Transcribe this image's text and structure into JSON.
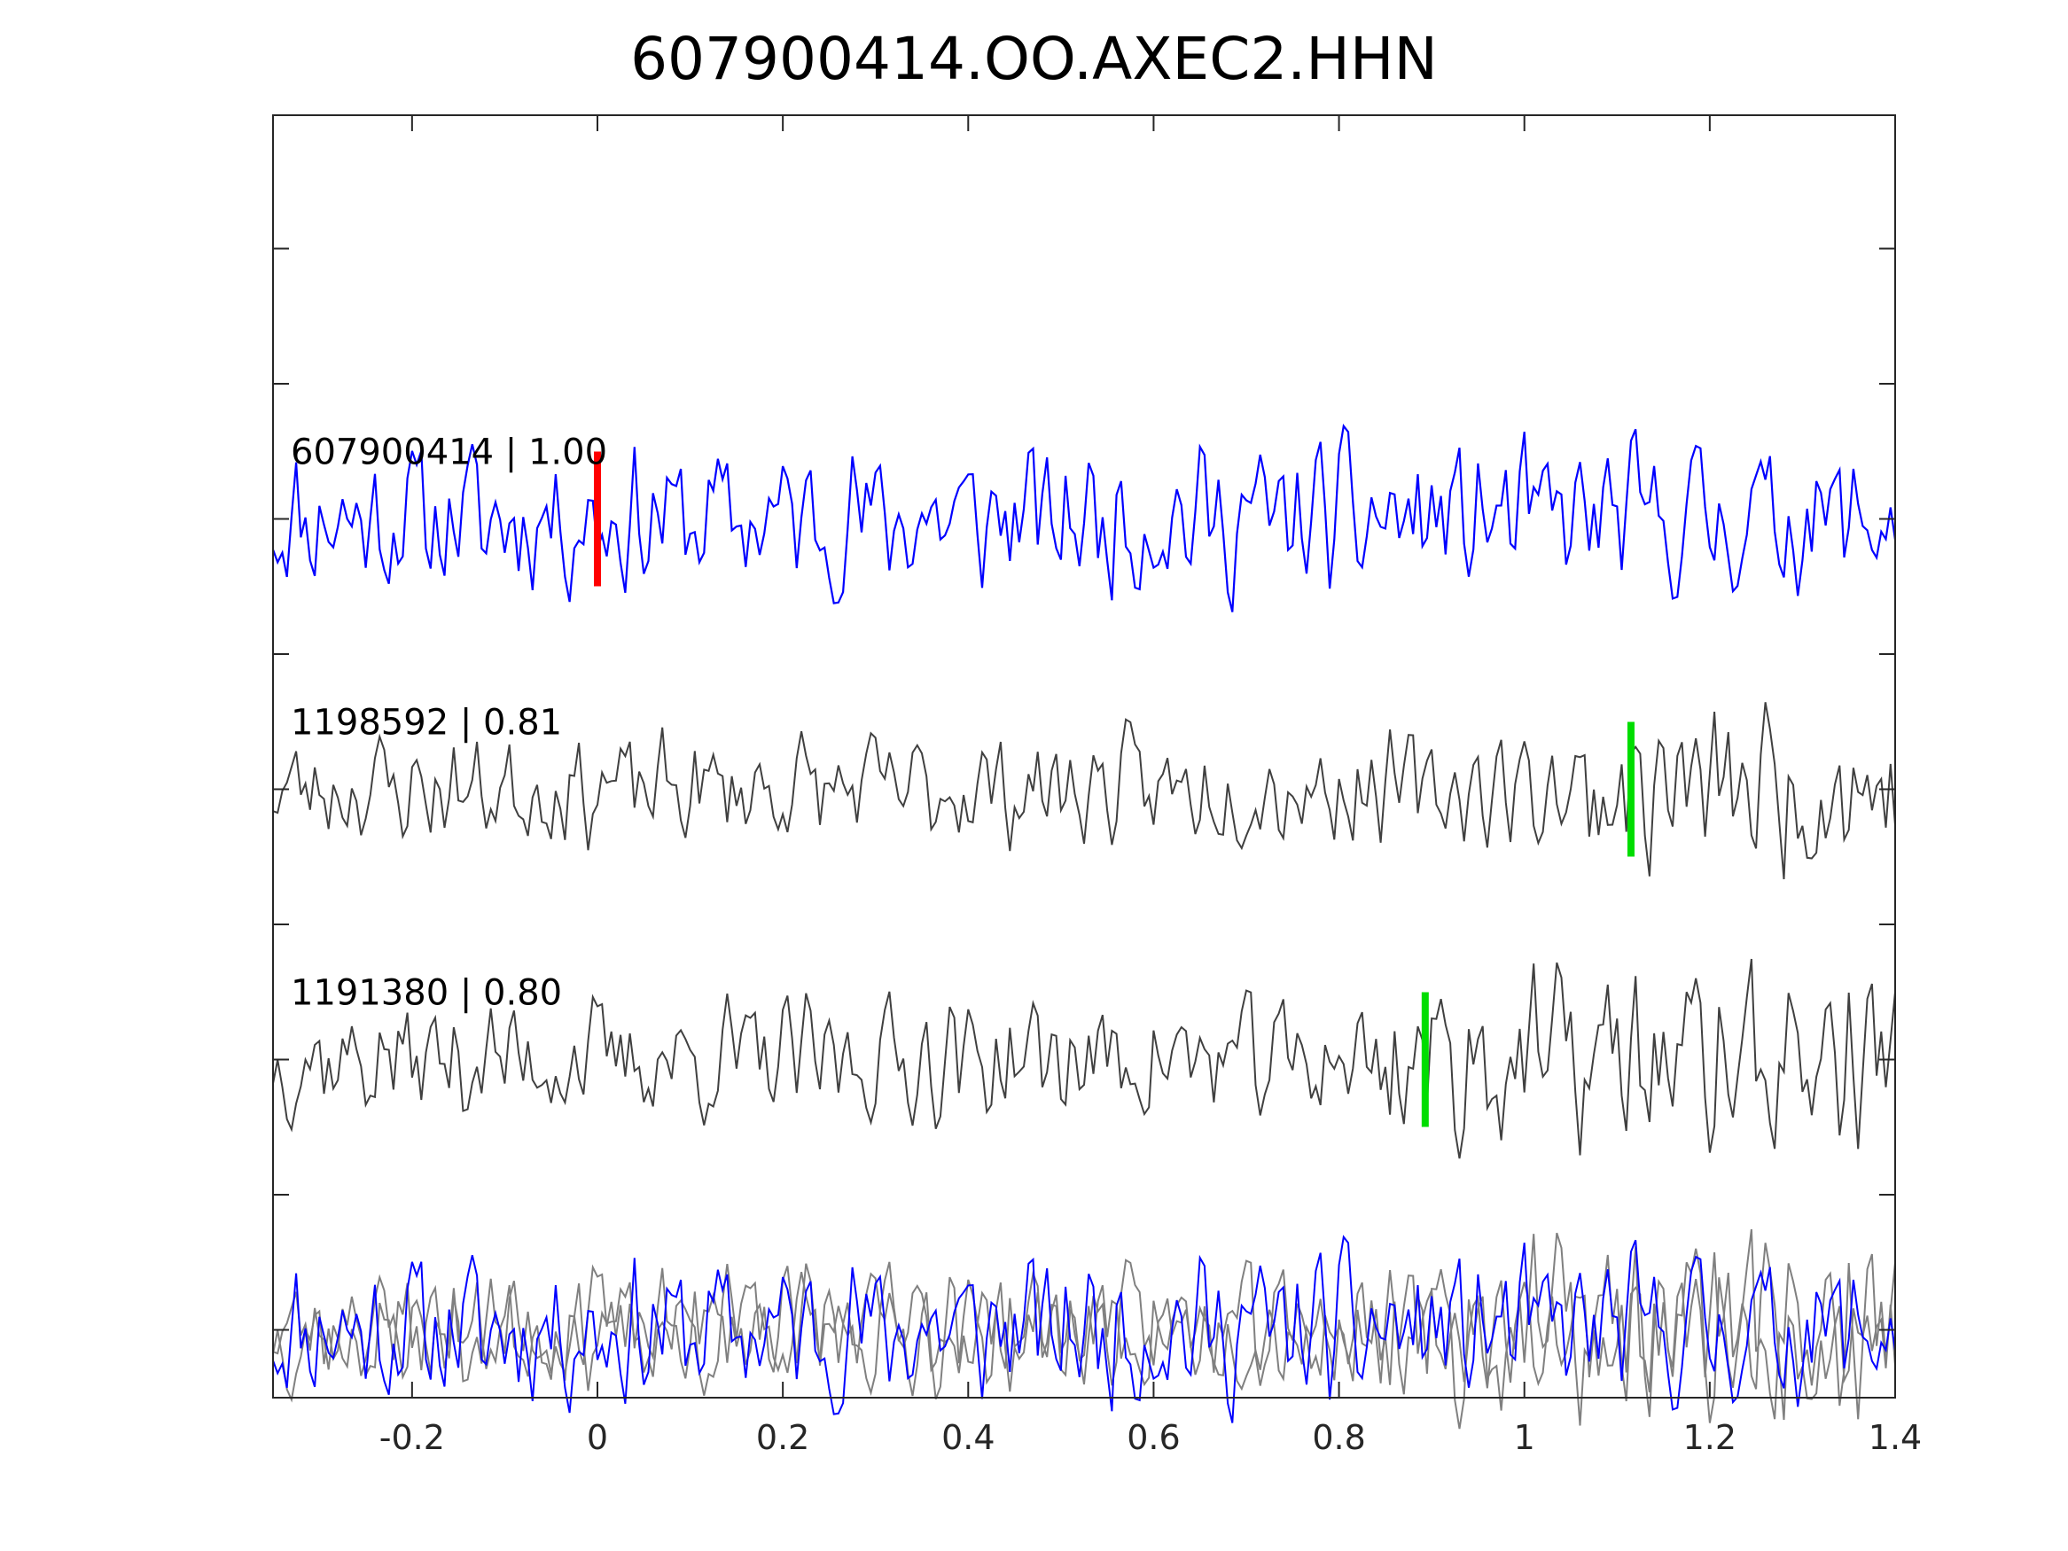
{
  "chart_data": {
    "type": "line",
    "title": "607900414.OO.AXEC2.HHN",
    "xlabel": "",
    "ylabel": "",
    "xlim": [
      -0.35,
      1.4
    ],
    "xticks": [
      -0.2,
      0,
      0.2,
      0.4,
      0.6,
      0.8,
      1,
      1.2,
      1.4
    ],
    "xtick_labels": [
      "-0.2",
      "0",
      "0.2",
      "0.4",
      "0.6",
      "0.8",
      "1",
      "1.2",
      "1.4"
    ],
    "y_ticks_count": 9,
    "y_tick_labels_visible": false,
    "grid": false,
    "legend": "none",
    "sample_interval": 0.005,
    "traces": [
      {
        "label": "607900414 | 1.00",
        "color": "#0000ff",
        "row": 1,
        "pick_time": 0.0,
        "pick_color": "#ff0000",
        "seed": 11
      },
      {
        "label": "1198592 | 0.81",
        "color": "#404040",
        "row": 2,
        "pick_time": 1.115,
        "pick_color": "#00dd00",
        "seed": 23
      },
      {
        "label": "1191380 | 0.80",
        "color": "#404040",
        "row": 3,
        "pick_time": 0.893,
        "pick_color": "#00dd00",
        "seed": 37
      }
    ],
    "overlay": {
      "row": 4,
      "colors": [
        "#0000ff",
        "#808080",
        "#808080"
      ]
    }
  }
}
